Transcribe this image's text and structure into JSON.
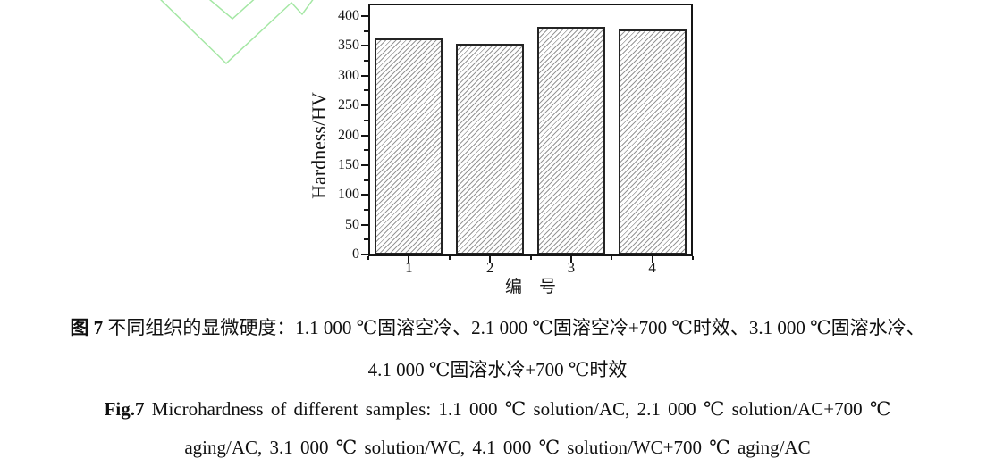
{
  "watermark": {
    "color": "#a4e7a4"
  },
  "chart_data": {
    "type": "bar",
    "categories": [
      "1",
      "2",
      "3",
      "4"
    ],
    "values": [
      363,
      353,
      382,
      378
    ],
    "title": "",
    "xlabel": "编　号",
    "ylabel": "Hardness/HV",
    "ylim": [
      0,
      418
    ],
    "yticks": [
      0,
      50,
      100,
      150,
      200,
      250,
      300,
      350,
      400
    ],
    "y_minor_step": 25,
    "grid": false,
    "legend": "none",
    "bar_style": "white fill with gray diagonal hatch",
    "hatch_color": "#979797",
    "bar_border_color": "#242424",
    "axis_color": "#151515"
  },
  "caption": {
    "line1_prefix": "图 7",
    "line1_text": " 不同组织的显微硬度：1.1 000 ℃固溶空冷、2.1 000 ℃固溶空冷+700 ℃时效、3.1 000 ℃固溶水冷、",
    "line2": "4.1 000 ℃固溶水冷+700 ℃时效",
    "line3_prefix": "Fig.7",
    "line3_text": " Microhardness of different samples: 1.1 000 ℃ solution/AC, 2.1 000 ℃ solution/AC+700 ℃",
    "line4": "aging/AC, 3.1 000 ℃ solution/WC, 4.1 000 ℃ solution/WC+700 ℃ aging/AC"
  }
}
